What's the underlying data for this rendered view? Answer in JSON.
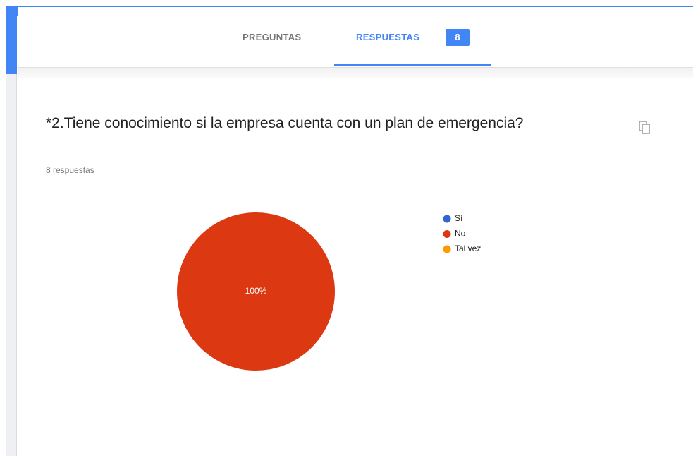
{
  "header": {
    "tabs": [
      "PREGUNTAS",
      "RESPUESTAS"
    ],
    "badge": 8
  },
  "question": {
    "title": "*2.Tiene conocimiento si la empresa cuenta con un plan de emergencia?",
    "responses": "8 respuestas"
  },
  "chart_data": {
    "type": "pie",
    "categories": [
      "Sí",
      "No",
      "Tal vez"
    ],
    "values": [
      0,
      100,
      0
    ],
    "value_labels": [
      null,
      "100%",
      null
    ],
    "colors": [
      "#3366cc",
      "#dc3912",
      "#ff9900"
    ]
  }
}
